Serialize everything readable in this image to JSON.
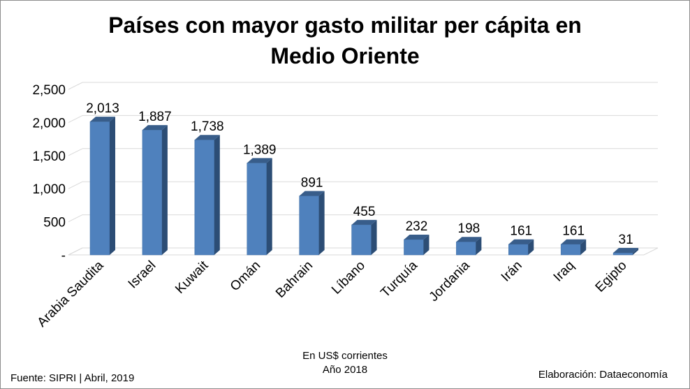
{
  "chart_data": {
    "type": "bar",
    "title_lines": [
      "Países con mayor gasto militar per cápita en",
      "Medio Oriente"
    ],
    "categories": [
      "Arabia Saudita",
      "Israel",
      "Kuwait",
      "Omán",
      "Bahrain",
      "Líbano",
      "Turquía",
      "Jordania",
      "Irán",
      "Iraq",
      "Egipto"
    ],
    "values": [
      2013,
      1887,
      1738,
      1389,
      891,
      455,
      232,
      198,
      161,
      161,
      31
    ],
    "value_labels": [
      "2,013",
      "1,887",
      "1,738",
      "1,389",
      "891",
      "455",
      "232",
      "198",
      "161",
      "161",
      "31"
    ],
    "ylim": [
      0,
      2500
    ],
    "yticks": [
      0,
      500,
      1000,
      1500,
      2000,
      2500
    ],
    "ytick_labels": [
      "-",
      "500",
      "1,000",
      "1,500",
      "2,000",
      "2,500"
    ],
    "grid": true,
    "bar_color": "#4f81bd",
    "bar_side_color": "#2c4d75",
    "bar_top_color": "#385d8a"
  },
  "footer": {
    "source": "Fuente: SIPRI | Abril, 2019",
    "note_line1": "En US$ corrientes",
    "note_line2": "Año 2018",
    "credit": "Elaboración: Dataeconomía"
  }
}
